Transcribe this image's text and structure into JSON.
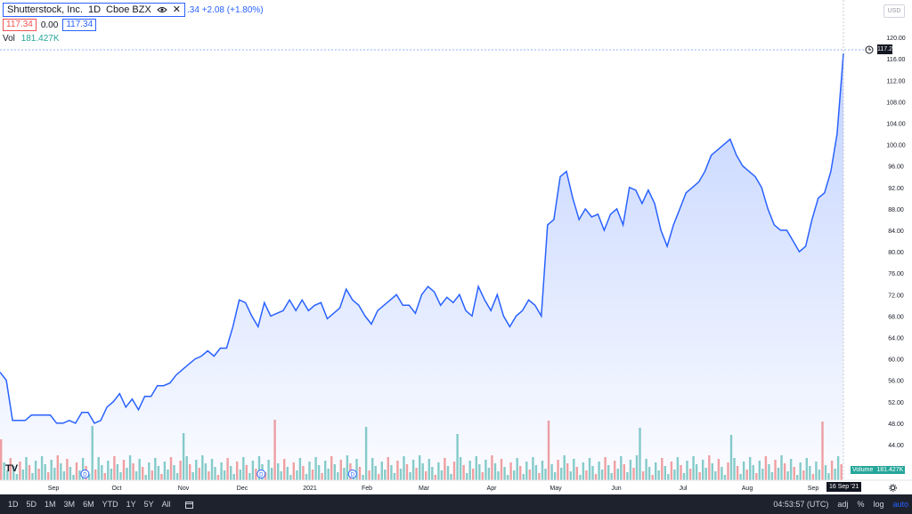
{
  "legend": {
    "symbol": "Shutterstock, Inc.",
    "interval": "1D",
    "exchange": "Cboe BZX",
    "change_text": ".34 +2.08 (+1.80%)",
    "bid": "117.34",
    "spread": "0.00",
    "ask": "117.34",
    "vol_label": "Vol",
    "vol_value": "181.427K"
  },
  "currency": "USD",
  "price_axis": {
    "ticks": [
      "120.00",
      "116.00",
      "112.00",
      "108.00",
      "104.00",
      "100.00",
      "96.00",
      "92.00",
      "88.00",
      "84.00",
      "80.00",
      "76.00",
      "72.00",
      "68.00",
      "64.00",
      "60.00",
      "56.00",
      "52.00",
      "48.00",
      "44.00"
    ],
    "last_price_tag": "117.22"
  },
  "time_axis": {
    "ticks": [
      "Sep",
      "Oct",
      "Nov",
      "Dec",
      "2021",
      "Feb",
      "Mar",
      "Apr",
      "May",
      "Jun",
      "Jul",
      "Aug",
      "Sep"
    ],
    "crosshair_date": "16 Sep '21"
  },
  "volume_label": {
    "name": "Volume",
    "value": "181.427K"
  },
  "bottom_bar": {
    "ranges": [
      "1D",
      "5D",
      "1M",
      "3M",
      "6M",
      "YTD",
      "1Y",
      "5Y",
      "All"
    ],
    "time": "04:53:57 (UTC)",
    "adj": "adj",
    "percent": "%",
    "log": "log",
    "auto": "auto"
  },
  "colors": {
    "line": "#2962ff",
    "up": "#26a69a",
    "down": "#ef5350",
    "dark": "#131722"
  },
  "icons": [
    "eye-icon",
    "close-icon",
    "calendar-icon",
    "clock-icon",
    "gear-icon",
    "tradingview-logo"
  ],
  "chart_data": {
    "type": "area",
    "title": "",
    "xlabel": "",
    "ylabel": "",
    "ylim": [
      42,
      122
    ],
    "x_ticks": [
      "Sep",
      "Oct",
      "Nov",
      "Dec",
      "2021",
      "Feb",
      "Mar",
      "Apr",
      "May",
      "Jun",
      "Jul",
      "Aug",
      "Sep"
    ],
    "x_range": [
      0,
      268
    ],
    "series": [
      {
        "points": [
          [
            0,
            57.5
          ],
          [
            2,
            56
          ],
          [
            4,
            48.5
          ],
          [
            6,
            48.5
          ],
          [
            8,
            48.5
          ],
          [
            10,
            49.5
          ],
          [
            12,
            49.5
          ],
          [
            14,
            49.5
          ],
          [
            16,
            49.5
          ],
          [
            18,
            48
          ],
          [
            20,
            48
          ],
          [
            22,
            48.5
          ],
          [
            24,
            48
          ],
          [
            26,
            50
          ],
          [
            28,
            50
          ],
          [
            30,
            48
          ],
          [
            32,
            48.5
          ],
          [
            34,
            51
          ],
          [
            36,
            52
          ],
          [
            38,
            53.5
          ],
          [
            40,
            51
          ],
          [
            42,
            52.5
          ],
          [
            44,
            50.5
          ],
          [
            46,
            53
          ],
          [
            48,
            53
          ],
          [
            50,
            55
          ],
          [
            52,
            55
          ],
          [
            54,
            55.5
          ],
          [
            56,
            57
          ],
          [
            58,
            58
          ],
          [
            60,
            59
          ],
          [
            62,
            60
          ],
          [
            64,
            60.5
          ],
          [
            66,
            61.5
          ],
          [
            68,
            60.5
          ],
          [
            70,
            62
          ],
          [
            72,
            62
          ],
          [
            74,
            66
          ],
          [
            76,
            71
          ],
          [
            78,
            70.5
          ],
          [
            80,
            68
          ],
          [
            82,
            66
          ],
          [
            84,
            70.5
          ],
          [
            86,
            68
          ],
          [
            88,
            68.5
          ],
          [
            90,
            69
          ],
          [
            92,
            71
          ],
          [
            94,
            69
          ],
          [
            96,
            71
          ],
          [
            98,
            69
          ],
          [
            100,
            70
          ],
          [
            102,
            70.5
          ],
          [
            104,
            67.5
          ],
          [
            106,
            68.5
          ],
          [
            108,
            69.5
          ],
          [
            110,
            73
          ],
          [
            112,
            71
          ],
          [
            114,
            70
          ],
          [
            116,
            68
          ],
          [
            118,
            66.5
          ],
          [
            120,
            69
          ],
          [
            122,
            70
          ],
          [
            124,
            71
          ],
          [
            126,
            72
          ],
          [
            128,
            70
          ],
          [
            130,
            70
          ],
          [
            132,
            68.5
          ],
          [
            134,
            72
          ],
          [
            136,
            73.5
          ],
          [
            138,
            72.5
          ],
          [
            140,
            70
          ],
          [
            142,
            71.5
          ],
          [
            144,
            70.5
          ],
          [
            146,
            72
          ],
          [
            148,
            69
          ],
          [
            150,
            68
          ],
          [
            152,
            73.5
          ],
          [
            154,
            71
          ],
          [
            156,
            69
          ],
          [
            158,
            72
          ],
          [
            160,
            68
          ],
          [
            162,
            66
          ],
          [
            164,
            68
          ],
          [
            166,
            69
          ],
          [
            168,
            71
          ],
          [
            170,
            70
          ],
          [
            172,
            68
          ],
          [
            174,
            85
          ],
          [
            176,
            86
          ],
          [
            178,
            94
          ],
          [
            180,
            95
          ],
          [
            182,
            90
          ],
          [
            184,
            86
          ],
          [
            186,
            88
          ],
          [
            188,
            86.5
          ],
          [
            190,
            87
          ],
          [
            192,
            84
          ],
          [
            194,
            87
          ],
          [
            196,
            88
          ],
          [
            198,
            85
          ],
          [
            200,
            92
          ],
          [
            202,
            91.5
          ],
          [
            204,
            89
          ],
          [
            206,
            91.5
          ],
          [
            208,
            89
          ],
          [
            210,
            84
          ],
          [
            212,
            81
          ],
          [
            214,
            85
          ],
          [
            216,
            88
          ],
          [
            218,
            91
          ],
          [
            220,
            92
          ],
          [
            222,
            93
          ],
          [
            224,
            95
          ],
          [
            226,
            98
          ],
          [
            228,
            99
          ],
          [
            230,
            100
          ],
          [
            232,
            101
          ],
          [
            234,
            98
          ],
          [
            236,
            96
          ],
          [
            238,
            95
          ],
          [
            240,
            94
          ],
          [
            242,
            92
          ],
          [
            244,
            88
          ],
          [
            246,
            85
          ],
          [
            248,
            84
          ],
          [
            250,
            84
          ],
          [
            252,
            82
          ],
          [
            254,
            80
          ],
          [
            256,
            81
          ],
          [
            258,
            86
          ],
          [
            260,
            90
          ],
          [
            262,
            91
          ],
          [
            264,
            95
          ],
          [
            266,
            102
          ],
          [
            268,
            117
          ]
        ]
      }
    ],
    "markers": [
      {
        "date_index": 27,
        "label": "D"
      },
      {
        "date_index": 83,
        "label": "D"
      },
      {
        "date_index": 112,
        "label": "D"
      }
    ]
  }
}
